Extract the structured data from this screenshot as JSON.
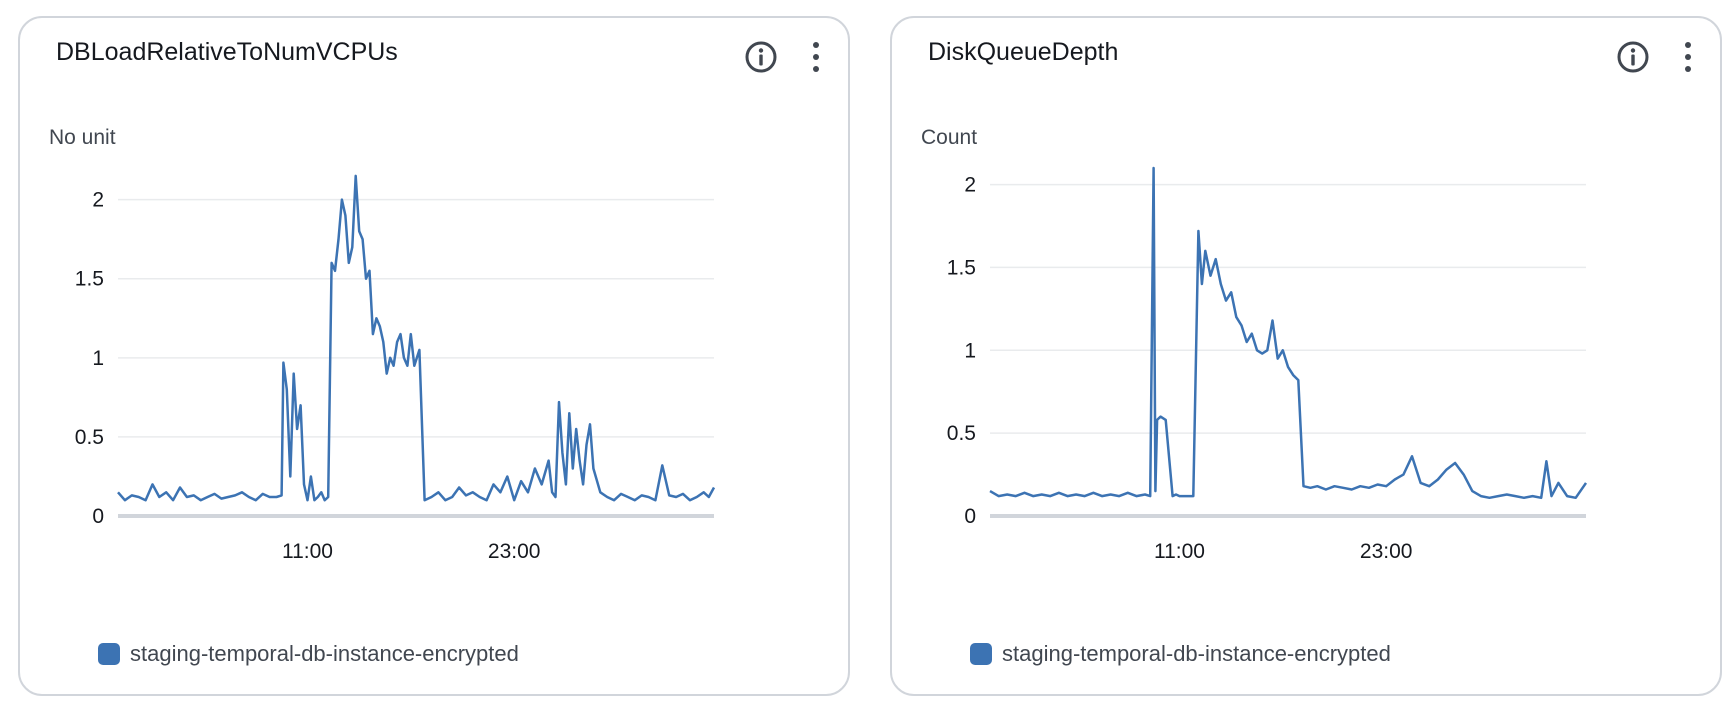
{
  "colors": {
    "series": "#3c73b3",
    "grid": "#e9ebed",
    "axis": "#d1d5db",
    "icon": "#414750"
  },
  "icons": [
    "info-icon",
    "more-vertical-icon"
  ],
  "chart_data": [
    {
      "type": "line",
      "title": "DBLoadRelativeToNumVCPUs",
      "ylabel": "No unit",
      "xlabel": "",
      "ylim": [
        0,
        2.2
      ],
      "yticks": [
        0,
        0.5,
        1,
        1.5,
        2
      ],
      "ytick_labels": [
        "0",
        "0.5",
        "1",
        "1.5",
        "2"
      ],
      "xlim": [
        0,
        34.6
      ],
      "xticks": [
        11,
        23
      ],
      "xtick_labels": [
        "11:00",
        "23:00"
      ],
      "grid": true,
      "legend_position": "bottom-left",
      "series": [
        {
          "name": "staging-temporal-db-instance-encrypted",
          "x": [
            0,
            0.4,
            0.8,
            1.2,
            1.6,
            2.0,
            2.4,
            2.8,
            3.2,
            3.6,
            4.0,
            4.4,
            4.8,
            5.2,
            5.6,
            6.0,
            6.4,
            6.8,
            7.2,
            7.6,
            8.0,
            8.4,
            8.8,
            9.2,
            9.5,
            9.6,
            9.8,
            10.0,
            10.2,
            10.4,
            10.6,
            10.8,
            11.0,
            11.2,
            11.4,
            11.6,
            11.8,
            12.0,
            12.2,
            12.4,
            12.6,
            12.8,
            13.0,
            13.2,
            13.4,
            13.6,
            13.8,
            14.0,
            14.2,
            14.4,
            14.6,
            14.8,
            15.0,
            15.2,
            15.4,
            15.6,
            15.8,
            16.0,
            16.2,
            16.4,
            16.6,
            16.8,
            17.0,
            17.2,
            17.5,
            17.8,
            18.2,
            18.6,
            19.0,
            19.4,
            19.8,
            20.2,
            20.6,
            21.0,
            21.4,
            21.8,
            22.2,
            22.6,
            23.0,
            23.4,
            23.8,
            24.2,
            24.6,
            25.0,
            25.2,
            25.4,
            25.6,
            25.8,
            26.0,
            26.2,
            26.4,
            26.6,
            26.8,
            27.0,
            27.2,
            27.4,
            27.6,
            28.0,
            28.4,
            28.8,
            29.2,
            29.6,
            30.0,
            30.4,
            30.8,
            31.2,
            31.6,
            32.0,
            32.4,
            32.8,
            33.2,
            33.6,
            34.0,
            34.3,
            34.6
          ],
          "values": [
            0.15,
            0.1,
            0.13,
            0.12,
            0.1,
            0.2,
            0.12,
            0.15,
            0.1,
            0.18,
            0.12,
            0.13,
            0.1,
            0.12,
            0.14,
            0.11,
            0.12,
            0.13,
            0.15,
            0.12,
            0.1,
            0.14,
            0.12,
            0.12,
            0.13,
            0.97,
            0.8,
            0.25,
            0.9,
            0.55,
            0.7,
            0.2,
            0.1,
            0.25,
            0.1,
            0.12,
            0.15,
            0.1,
            0.12,
            1.6,
            1.55,
            1.75,
            2.0,
            1.9,
            1.6,
            1.7,
            2.15,
            1.8,
            1.75,
            1.5,
            1.55,
            1.15,
            1.25,
            1.2,
            1.1,
            0.9,
            1.0,
            0.95,
            1.1,
            1.15,
            1.0,
            0.95,
            1.15,
            0.95,
            1.05,
            0.1,
            0.12,
            0.15,
            0.1,
            0.12,
            0.18,
            0.13,
            0.15,
            0.12,
            0.1,
            0.2,
            0.15,
            0.25,
            0.1,
            0.22,
            0.15,
            0.3,
            0.2,
            0.35,
            0.15,
            0.12,
            0.72,
            0.4,
            0.2,
            0.65,
            0.3,
            0.55,
            0.35,
            0.2,
            0.45,
            0.58,
            0.3,
            0.15,
            0.12,
            0.1,
            0.14,
            0.12,
            0.1,
            0.13,
            0.12,
            0.1,
            0.32,
            0.13,
            0.12,
            0.14,
            0.1,
            0.12,
            0.15,
            0.12,
            0.18
          ]
        }
      ]
    },
    {
      "type": "line",
      "title": "DiskQueueDepth",
      "ylabel": "Count",
      "xlabel": "",
      "ylim": [
        0,
        2.1
      ],
      "yticks": [
        0,
        0.5,
        1,
        1.5,
        2
      ],
      "ytick_labels": [
        "0",
        "0.5",
        "1",
        "1.5",
        "2"
      ],
      "xlim": [
        0,
        34.6
      ],
      "xticks": [
        11,
        23
      ],
      "xtick_labels": [
        "11:00",
        "23:00"
      ],
      "grid": true,
      "legend_position": "bottom-left",
      "series": [
        {
          "name": "staging-temporal-db-instance-encrypted",
          "x": [
            0,
            0.5,
            1.0,
            1.5,
            2.0,
            2.5,
            3.0,
            3.5,
            4.0,
            4.5,
            5.0,
            5.5,
            6.0,
            6.5,
            7.0,
            7.5,
            8.0,
            8.5,
            9.0,
            9.3,
            9.5,
            9.6,
            9.7,
            9.9,
            10.2,
            10.6,
            10.8,
            11.0,
            11.4,
            11.8,
            12.1,
            12.3,
            12.5,
            12.8,
            13.1,
            13.4,
            13.7,
            14.0,
            14.3,
            14.6,
            14.9,
            15.2,
            15.5,
            15.8,
            16.1,
            16.4,
            16.7,
            17.0,
            17.3,
            17.6,
            17.9,
            18.2,
            18.6,
            19.0,
            19.5,
            20.0,
            20.5,
            21.0,
            21.5,
            22.0,
            22.5,
            23.0,
            23.5,
            24.0,
            24.5,
            25.0,
            25.5,
            26.0,
            26.5,
            27.0,
            27.5,
            28.0,
            28.5,
            29.0,
            29.5,
            30.0,
            30.5,
            31.0,
            31.5,
            32.0,
            32.3,
            32.6,
            33.0,
            33.5,
            34.0,
            34.6
          ],
          "values": [
            0.15,
            0.12,
            0.13,
            0.12,
            0.14,
            0.12,
            0.13,
            0.12,
            0.14,
            0.12,
            0.13,
            0.12,
            0.14,
            0.12,
            0.13,
            0.12,
            0.14,
            0.12,
            0.13,
            0.12,
            2.1,
            0.15,
            0.58,
            0.6,
            0.58,
            0.12,
            0.13,
            0.12,
            0.12,
            0.12,
            1.72,
            1.4,
            1.6,
            1.45,
            1.55,
            1.4,
            1.3,
            1.35,
            1.2,
            1.15,
            1.05,
            1.1,
            1.0,
            0.98,
            1.0,
            1.18,
            0.95,
            1.0,
            0.9,
            0.85,
            0.82,
            0.18,
            0.17,
            0.18,
            0.16,
            0.18,
            0.17,
            0.16,
            0.18,
            0.17,
            0.19,
            0.18,
            0.22,
            0.25,
            0.36,
            0.2,
            0.18,
            0.22,
            0.28,
            0.32,
            0.25,
            0.15,
            0.12,
            0.11,
            0.12,
            0.13,
            0.12,
            0.11,
            0.12,
            0.11,
            0.33,
            0.12,
            0.2,
            0.12,
            0.11,
            0.2
          ]
        }
      ]
    }
  ]
}
